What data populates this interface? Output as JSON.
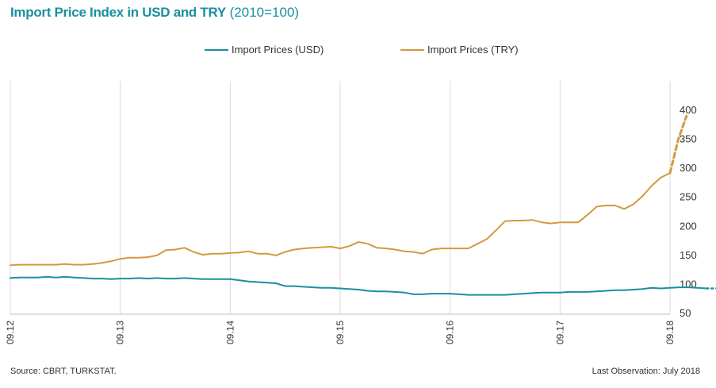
{
  "title": {
    "main": "Import Price Index in USD and TRY",
    "sub": "(2010=100)"
  },
  "footer": {
    "source": "Source: CBRT,  TURKSTAT.",
    "last_observation": "Last Observation:  July 2018"
  },
  "chart_data": {
    "type": "line",
    "title": "Import Price Index in USD and TRY (2010=100)",
    "xlabel": "",
    "ylabel": "",
    "ylim": [
      50,
      400
    ],
    "y_ticks": [
      50,
      100,
      150,
      200,
      250,
      300,
      350,
      400
    ],
    "x_ticks": [
      "09.12",
      "09.13",
      "09.14",
      "09.15",
      "09.16",
      "09.17",
      "09.18"
    ],
    "x_start": "2012-09",
    "grid": "vertical",
    "legend_position": "top",
    "series": [
      {
        "name": "Import Prices (USD)",
        "color": "#1a8fa0",
        "values": [
          111,
          112,
          112,
          112,
          113,
          112,
          113,
          112,
          111,
          110,
          110,
          109,
          110,
          110,
          111,
          110,
          111,
          110,
          110,
          111,
          110,
          109,
          109,
          109,
          109,
          107,
          105,
          104,
          103,
          102,
          97,
          97,
          96,
          95,
          94,
          94,
          93,
          92,
          91,
          89,
          88,
          88,
          87,
          86,
          83,
          83,
          84,
          84,
          84,
          83,
          82,
          82,
          82,
          82,
          82,
          83,
          84,
          85,
          86,
          86,
          86,
          87,
          87,
          87,
          88,
          89,
          90,
          90,
          91,
          92,
          94,
          93,
          94,
          95,
          95,
          94,
          93
        ],
        "projection_values": [
          93,
          93,
          93,
          93,
          93
        ]
      },
      {
        "name": "Import Prices (TRY)",
        "color": "#d29a3f",
        "values": [
          133,
          134,
          134,
          134,
          134,
          134,
          135,
          134,
          134,
          135,
          137,
          140,
          144,
          146,
          146,
          147,
          150,
          159,
          160,
          163,
          156,
          151,
          153,
          153,
          154,
          155,
          157,
          153,
          153,
          150,
          156,
          160,
          162,
          163,
          164,
          165,
          162,
          166,
          173,
          170,
          163,
          162,
          160,
          157,
          156,
          153,
          160,
          162,
          162,
          162,
          162,
          170,
          178,
          193,
          209,
          210,
          210,
          211,
          207,
          205,
          207,
          207,
          207,
          220,
          234,
          236,
          236,
          230,
          238,
          252,
          270,
          284,
          292
        ],
        "projection_values": [
          292,
          350,
          390
        ]
      }
    ]
  }
}
